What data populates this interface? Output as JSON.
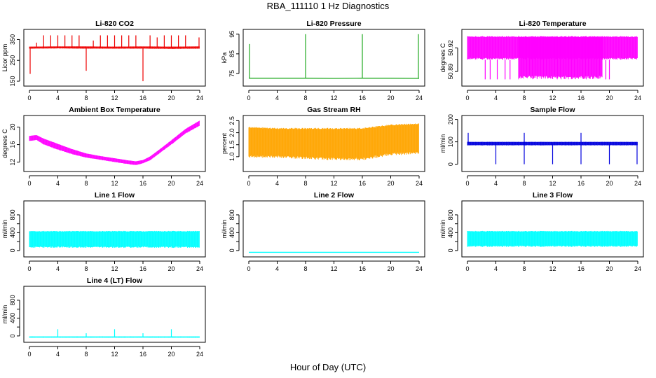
{
  "figure": {
    "title": "RBA_111110  1 Hz Diagnostics",
    "xlabel": "Hour of Day (UTC)"
  },
  "chart_data": [
    {
      "id": "co2",
      "type": "line",
      "title": "Li-820 CO2",
      "ylabel": "Licor ppm",
      "color": "#ee0000",
      "xlim": [
        0,
        24
      ],
      "xticks": [
        0,
        4,
        8,
        12,
        16,
        20,
        24
      ],
      "ylim": [
        140,
        385
      ],
      "yticks": [
        150,
        250,
        350
      ],
      "ytick_labels": [
        "150",
        "250",
        "350"
      ],
      "series": [
        {
          "kind": "band",
          "x": [
            0,
            4,
            8,
            12,
            16,
            20,
            24
          ],
          "low": [
            306,
            307,
            306,
            306,
            306,
            305,
            306
          ],
          "high": [
            316,
            317,
            317,
            316,
            317,
            316,
            317
          ]
        },
        {
          "kind": "spikes",
          "base": 310,
          "x": [
            0.1,
            1.0,
            2.0,
            3.0,
            4.0,
            5.0,
            6.0,
            7.0,
            8.0,
            9.0,
            10.0,
            11.0,
            12.0,
            13.0,
            14.0,
            15.0,
            16.0,
            17.0,
            18.0,
            19.0,
            20.0,
            21.0,
            22.0,
            23.9
          ],
          "y": [
            185,
            335,
            370,
            370,
            370,
            370,
            370,
            370,
            200,
            345,
            370,
            370,
            370,
            370,
            370,
            370,
            150,
            370,
            360,
            370,
            370,
            370,
            370,
            360
          ]
        }
      ]
    },
    {
      "id": "pressure",
      "type": "line",
      "title": "Li-820 Pressure",
      "ylabel": "kPa",
      "color": "#22aa22",
      "xlim": [
        0,
        24
      ],
      "xticks": [
        0,
        4,
        8,
        12,
        16,
        20,
        24
      ],
      "ylim": [
        70,
        96
      ],
      "yticks": [
        75,
        85,
        95
      ],
      "ytick_labels": [
        "75",
        "85",
        "95"
      ],
      "series": [
        {
          "kind": "line",
          "x": [
            0,
            4,
            8,
            12,
            16,
            20,
            24
          ],
          "y": [
            72.6,
            72.6,
            72.6,
            72.5,
            72.6,
            72.6,
            72.5
          ]
        },
        {
          "kind": "spikes",
          "base": 72.6,
          "x": [
            0.1,
            8.0,
            16.0,
            23.9
          ],
          "y": [
            90,
            95,
            95,
            95
          ]
        }
      ]
    },
    {
      "id": "licor-temp",
      "type": "line",
      "title": "Li-820 Temperature",
      "ylabel": "degrees C",
      "color": "#ff00ff",
      "xlim": [
        0,
        24
      ],
      "xticks": [
        0,
        4,
        8,
        12,
        16,
        20,
        24
      ],
      "ylim": [
        50.875,
        50.94
      ],
      "yticks": [
        50.89,
        50.92
      ],
      "ytick_labels": [
        "50.89",
        "50.92"
      ],
      "series": [
        {
          "kind": "band",
          "x": [
            0,
            24
          ],
          "low": [
            50.905,
            50.905
          ],
          "high": [
            50.935,
            50.935
          ]
        },
        {
          "kind": "band",
          "x": [
            7.2,
            19
          ],
          "low": [
            50.88,
            50.88
          ],
          "high": [
            50.935,
            50.935
          ]
        },
        {
          "kind": "spikes",
          "base": 50.905,
          "x": [
            2.5,
            3.2,
            4.2,
            5.3,
            6.0,
            19.5,
            20.0
          ],
          "y": [
            50.88,
            50.88,
            50.88,
            50.88,
            50.88,
            50.88,
            50.88
          ]
        }
      ]
    },
    {
      "id": "box-temp",
      "type": "line",
      "title": "Ambient Box Temperature",
      "ylabel": "degrees C",
      "color": "#ff00ff",
      "xlim": [
        0,
        24
      ],
      "xticks": [
        0,
        4,
        8,
        12,
        16,
        20,
        24
      ],
      "ylim": [
        10.5,
        22
      ],
      "yticks": [
        12,
        16,
        20
      ],
      "ytick_labels": [
        "12",
        "16",
        "20"
      ],
      "series": [
        {
          "kind": "band",
          "x": [
            0,
            1,
            2,
            4,
            6,
            8,
            10,
            12,
            14,
            15,
            16,
            17,
            18,
            20,
            22,
            24
          ],
          "low": [
            16.8,
            17.0,
            16.0,
            14.8,
            13.8,
            13.0,
            12.5,
            12.0,
            11.5,
            11.3,
            11.7,
            12.4,
            13.6,
            16.0,
            18.5,
            20.3
          ],
          "high": [
            18.0,
            18.2,
            17.4,
            16.2,
            15.0,
            14.0,
            13.4,
            12.9,
            12.4,
            12.2,
            12.5,
            13.3,
            14.5,
            17.0,
            19.6,
            21.5
          ]
        }
      ]
    },
    {
      "id": "rh",
      "type": "line",
      "title": "Gas Stream RH",
      "ylabel": "percent",
      "color": "#ffa500",
      "xlim": [
        0,
        24
      ],
      "xticks": [
        0,
        4,
        8,
        12,
        16,
        20,
        24
      ],
      "ylim": [
        0.5,
        2.6
      ],
      "yticks": [
        1.0,
        1.5,
        2.0,
        2.5
      ],
      "ytick_labels": [
        "1.0",
        "1.5",
        "2.0",
        "2.5"
      ],
      "series": [
        {
          "kind": "band",
          "x": [
            0,
            4,
            8,
            12,
            16,
            20,
            24
          ],
          "low": [
            0.95,
            0.95,
            0.9,
            0.85,
            0.85,
            1.05,
            1.1
          ],
          "high": [
            2.25,
            2.2,
            2.2,
            2.2,
            2.2,
            2.35,
            2.4
          ]
        }
      ]
    },
    {
      "id": "sample-flow",
      "type": "line",
      "title": "Sample Flow",
      "ylabel": "ml/min",
      "color": "#0000dd",
      "xlim": [
        0,
        24
      ],
      "xticks": [
        0,
        4,
        8,
        12,
        16,
        20,
        24
      ],
      "ylim": [
        -20,
        205
      ],
      "yticks": [
        0,
        100,
        200
      ],
      "ytick_labels": [
        "0",
        "100",
        "200"
      ],
      "series": [
        {
          "kind": "band",
          "x": [
            0,
            24
          ],
          "low": [
            84,
            84
          ],
          "high": [
            100,
            100
          ]
        },
        {
          "kind": "spikes",
          "base": 92,
          "x": [
            0.1,
            4.0,
            8.0,
            12.0,
            16.0,
            20.0,
            23.9
          ],
          "y": [
            140,
            0,
            0,
            0,
            0,
            0,
            0
          ]
        },
        {
          "kind": "spikes",
          "base": 92,
          "x": [
            8.0,
            16.0
          ],
          "y": [
            140,
            140
          ]
        }
      ]
    },
    {
      "id": "line1-flow",
      "type": "line",
      "title": "Line 1 Flow",
      "ylabel": "ml/min",
      "color": "#00ffff",
      "xlim": [
        0,
        24
      ],
      "xticks": [
        0,
        4,
        8,
        12,
        16,
        20,
        24
      ],
      "ylim": [
        -80,
        1050
      ],
      "yticks": [
        0,
        200,
        400,
        600,
        800
      ],
      "ytick_labels": [
        "0",
        "",
        "400",
        "",
        "800"
      ],
      "series": [
        {
          "kind": "band",
          "x": [
            0,
            24
          ],
          "low": [
            60,
            60
          ],
          "high": [
            440,
            440
          ]
        }
      ]
    },
    {
      "id": "line2-flow",
      "type": "line",
      "title": "Line 2 Flow",
      "ylabel": "ml/min",
      "color": "#00ffff",
      "xlim": [
        0,
        24
      ],
      "xticks": [
        0,
        4,
        8,
        12,
        16,
        20,
        24
      ],
      "ylim": [
        -80,
        1050
      ],
      "yticks": [
        0,
        200,
        400,
        600,
        800
      ],
      "ytick_labels": [
        "0",
        "",
        "400",
        "",
        "800"
      ],
      "series": [
        {
          "kind": "line",
          "x": [
            0,
            24
          ],
          "y": [
            -40,
            -40
          ]
        }
      ]
    },
    {
      "id": "line3-flow",
      "type": "line",
      "title": "Line 3 Flow",
      "ylabel": "ml/min",
      "color": "#00ffff",
      "xlim": [
        0,
        24
      ],
      "xticks": [
        0,
        4,
        8,
        12,
        16,
        20,
        24
      ],
      "ylim": [
        -80,
        1050
      ],
      "yticks": [
        0,
        200,
        400,
        600,
        800
      ],
      "ytick_labels": [
        "0",
        "",
        "400",
        "",
        "800"
      ],
      "series": [
        {
          "kind": "band",
          "x": [
            0,
            24
          ],
          "low": [
            80,
            80
          ],
          "high": [
            440,
            440
          ]
        }
      ]
    },
    {
      "id": "line4-flow",
      "type": "line",
      "title": "Line 4 (LT) Flow",
      "ylabel": "ml/min",
      "color": "#00ffff",
      "xlim": [
        0,
        24
      ],
      "xticks": [
        0,
        4,
        8,
        12,
        16,
        20,
        24
      ],
      "ylim": [
        -80,
        1050
      ],
      "yticks": [
        0,
        200,
        400,
        600,
        800
      ],
      "ytick_labels": [
        "0",
        "",
        "400",
        "",
        "800"
      ],
      "series": [
        {
          "kind": "band",
          "x": [
            0,
            24
          ],
          "low": [
            -40,
            -40
          ],
          "high": [
            -10,
            -10
          ]
        },
        {
          "kind": "spikes",
          "base": -20,
          "x": [
            4.0,
            8.0,
            12.0,
            16.0,
            20.0
          ],
          "y": [
            150,
            60,
            150,
            60,
            150
          ]
        }
      ]
    }
  ]
}
